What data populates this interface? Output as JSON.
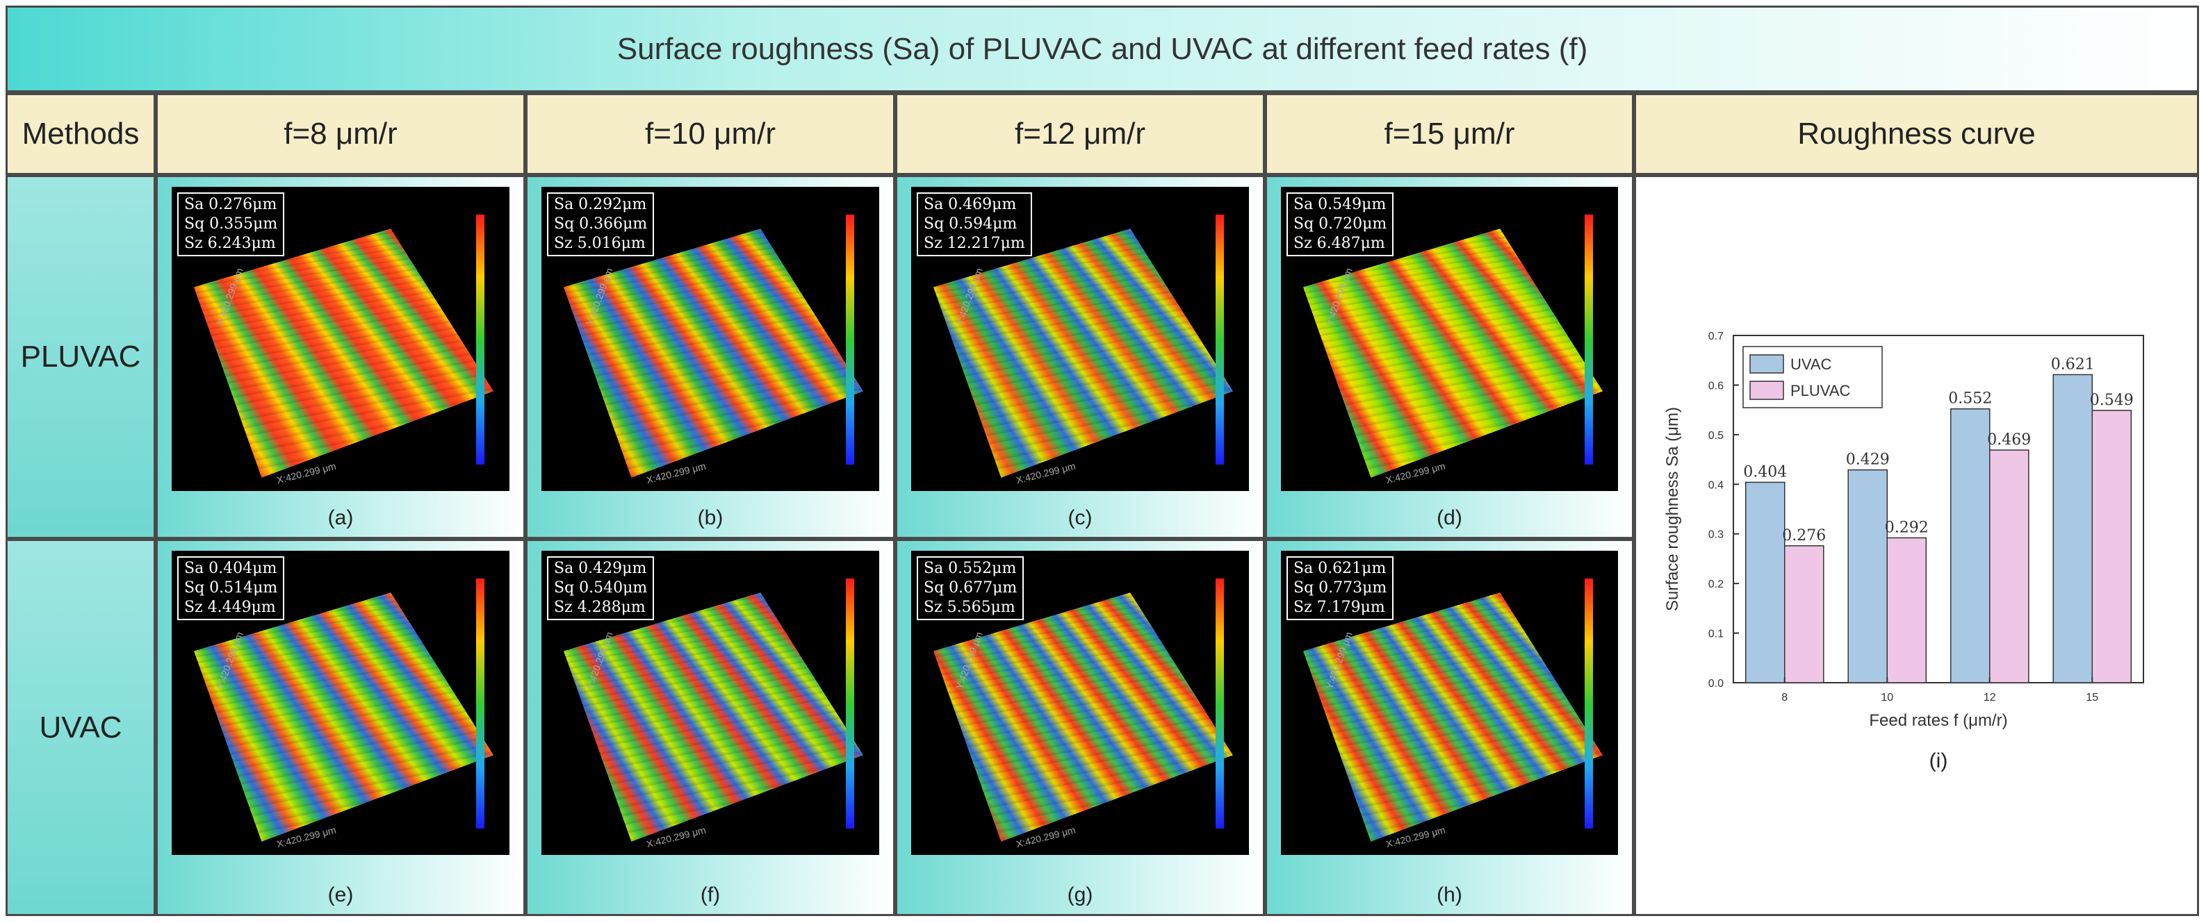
{
  "title": "Surface roughness (Sa) of PLUVAC and UVAC at different feed rates (f)",
  "headers": {
    "methods": "Methods",
    "feeds": [
      "f=8 μm/r",
      "f=10 μm/r",
      "f=12 μm/r",
      "f=15 μm/r"
    ],
    "curve": "Roughness curve"
  },
  "rows": [
    {
      "label": "PLUVAC",
      "cells": [
        {
          "sa": "Sa 0.276μm",
          "sq": "Sq 0.355μm",
          "sz": "Sz 6.243μm",
          "sub": "(a)",
          "xaxis": "X:420.299 μm",
          "yaxis": "Y:420.299 μm",
          "palette": [
            "#ff5a1a",
            "#ffd400",
            "#39c34a",
            "#ff3b1f"
          ]
        },
        {
          "sa": "Sa 0.292μm",
          "sq": "Sq 0.366μm",
          "sz": "Sz 5.016μm",
          "sub": "(b)",
          "xaxis": "X:420.299 μm",
          "yaxis": "Y:420.299 μm",
          "palette": [
            "#ff4a1a",
            "#e8d800",
            "#33b84a",
            "#2f6fe0"
          ]
        },
        {
          "sa": "Sa 0.469μm",
          "sq": "Sq 0.594μm",
          "sz": "Sz 12.217μm",
          "sub": "(c)",
          "xaxis": "X:420.299 μm",
          "yaxis": "Y:420.299 μm",
          "palette": [
            "#d7e600",
            "#ff5a1a",
            "#33b84a",
            "#2f6fe0"
          ]
        },
        {
          "sa": "Sa 0.549μm",
          "sq": "Sq 0.720μm",
          "sz": "Sz 6.487μm",
          "sub": "(d)",
          "xaxis": "X:420.299 μm",
          "yaxis": "Y:420.299 μm",
          "palette": [
            "#a8e600",
            "#3cc44a",
            "#ff3b1f",
            "#f0e000"
          ]
        }
      ]
    },
    {
      "label": "UVAC",
      "cells": [
        {
          "sa": "Sa 0.404μm",
          "sq": "Sq 0.514μm",
          "sz": "Sz 4.449μm",
          "sub": "(e)",
          "xaxis": "X:420.299 μm",
          "yaxis": "Y:420.299 μm",
          "palette": [
            "#c9e800",
            "#3cc44a",
            "#2f6fe0",
            "#ff5a1a"
          ]
        },
        {
          "sa": "Sa 0.429μm",
          "sq": "Sq 0.540μm",
          "sz": "Sz 4.288μm",
          "sub": "(f)",
          "xaxis": "X:420.299 μm",
          "yaxis": "Y:420.299 μm",
          "palette": [
            "#c9e800",
            "#3cc44a",
            "#ff3b1f",
            "#2f6fe0"
          ]
        },
        {
          "sa": "Sa 0.552μm",
          "sq": "Sq 0.677μm",
          "sz": "Sz 5.565μm",
          "sub": "(g)",
          "xaxis": "X:420.299 μm",
          "yaxis": "Y:420.299 μm",
          "palette": [
            "#ff3b1f",
            "#3cc44a",
            "#2f6fe0",
            "#e8d800"
          ]
        },
        {
          "sa": "Sa 0.621μm",
          "sq": "Sq 0.773μm",
          "sz": "Sz 7.179μm",
          "sub": "(h)",
          "xaxis": "X:420.299 μm",
          "yaxis": "Y:420.299 μm",
          "palette": [
            "#3cc44a",
            "#2f6fe0",
            "#d7e600",
            "#ff3b1f"
          ]
        }
      ]
    }
  ],
  "chart_data": {
    "type": "bar",
    "categories": [
      "8",
      "10",
      "12",
      "15"
    ],
    "series": [
      {
        "name": "UVAC",
        "values": [
          0.404,
          0.429,
          0.552,
          0.621
        ],
        "color": "#a9c8e4"
      },
      {
        "name": "PLUVAC",
        "values": [
          0.276,
          0.292,
          0.469,
          0.549
        ],
        "color": "#f0c6e6"
      }
    ],
    "data_labels": [
      [
        "0.404",
        "0.429",
        "0.552",
        "0.621"
      ],
      [
        "0.276",
        "0.292",
        "0.469",
        "0.549"
      ]
    ],
    "xlabel": "Feed rates f (μm/r)",
    "ylabel": "Surface roughness Sa (μm)",
    "ylim": [
      0,
      0.7
    ],
    "yticks": [
      "0.0",
      "0.1",
      "0.2",
      "0.3",
      "0.4",
      "0.5",
      "0.6",
      "0.7"
    ],
    "legend": "top-left",
    "sublabel": "(i)"
  }
}
